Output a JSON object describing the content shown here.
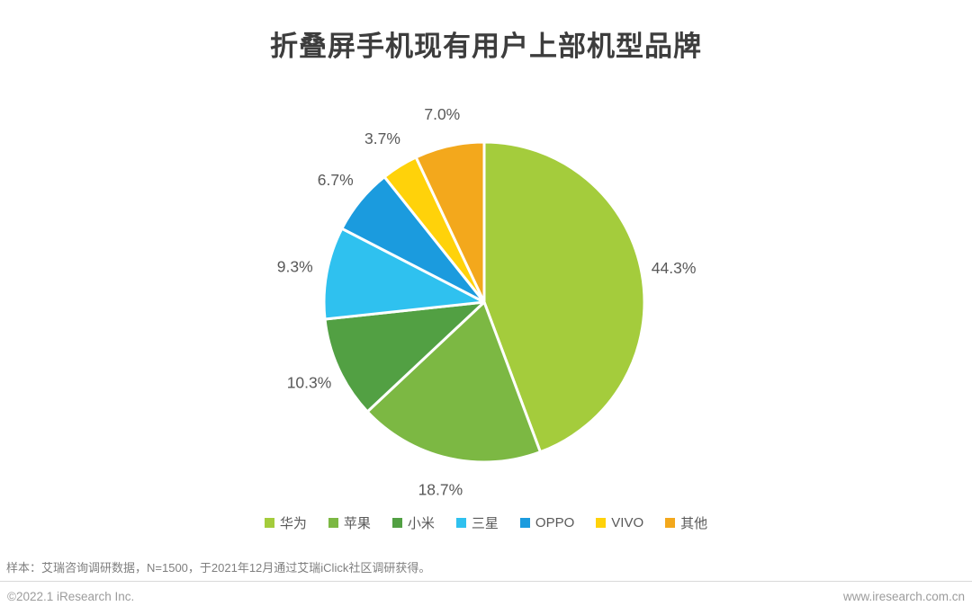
{
  "title": "折叠屏手机现有用户上部机型品牌",
  "chart_data": {
    "type": "pie",
    "title": "折叠屏手机现有用户上部机型品牌",
    "direction": "clockwise",
    "start_angle_deg": 0,
    "labels_position": "outside",
    "legend_position": "bottom",
    "slices": [
      {
        "label": "华为",
        "value": 44.3,
        "display": "44.3%",
        "color": "#a4cc3c"
      },
      {
        "label": "苹果",
        "value": 18.7,
        "display": "18.7%",
        "color": "#7cb843"
      },
      {
        "label": "小米",
        "value": 10.3,
        "display": "10.3%",
        "color": "#52a043"
      },
      {
        "label": "三星",
        "value": 9.3,
        "display": "9.3%",
        "color": "#2fc1ef"
      },
      {
        "label": "OPPO",
        "value": 6.7,
        "display": "6.7%",
        "color": "#1b9bde"
      },
      {
        "label": "VIVO",
        "value": 3.7,
        "display": "3.7%",
        "color": "#ffd20a"
      },
      {
        "label": "其他",
        "value": 7.0,
        "display": "7.0%",
        "color": "#f3a81c"
      }
    ]
  },
  "footer": {
    "sample_note": "样本：艾瑞咨询调研数据，N=1500，于2021年12月通过艾瑞iClick社区调研获得。",
    "copyright": "©2022.1 iResearch Inc.",
    "website": "www.iresearch.com.cn"
  },
  "colors": {
    "title_text": "#3d3d3d",
    "pct_label_text": "#595959",
    "legend_text": "#595959",
    "note_text": "#7f7f7f",
    "footer_text": "#9c9c9c",
    "divider": "#d9d9d9",
    "slice_gap_stroke": "#ffffff"
  }
}
